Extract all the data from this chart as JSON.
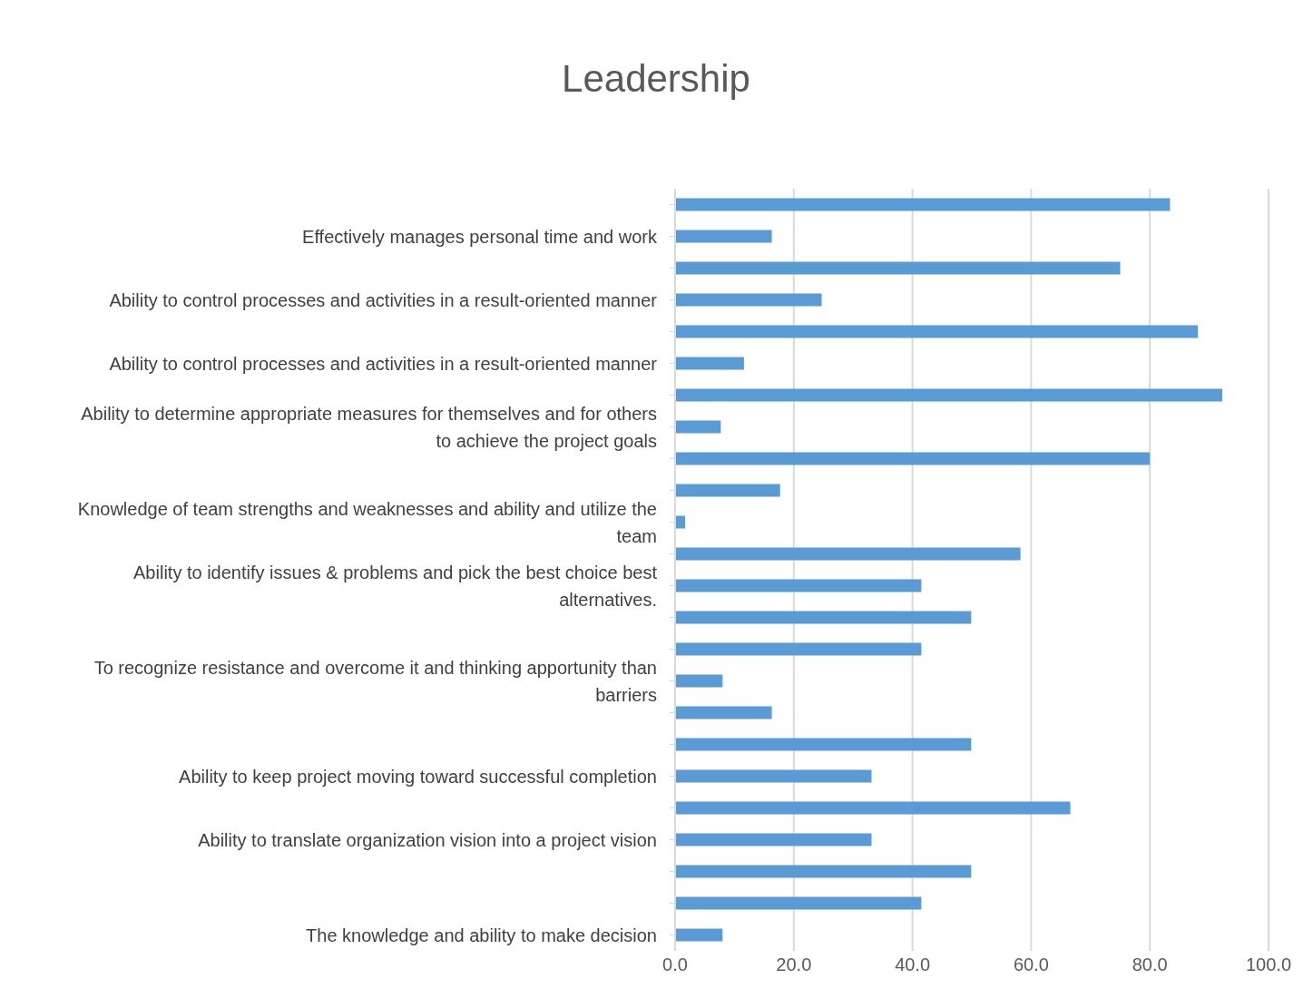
{
  "chart_data": {
    "type": "bar",
    "orientation": "horizontal",
    "title": "Leadership",
    "categories": [
      null,
      "Effectively manages personal time and work",
      null,
      "Ability to control processes and activities in a result-oriented manner",
      null,
      "Ability to control processes and activities in a result-oriented manner",
      null,
      "Ability to determine appropriate measures for themselves and for others to achieve the project goals",
      null,
      null,
      "Knowledge of team strengths and weaknesses and ability and utilize the team",
      null,
      "Ability to identify issues & problems and pick the best choice best alternatives.",
      null,
      null,
      "To recognize resistance and overcome it and thinking apportunity than barriers",
      null,
      null,
      "Ability to keep project moving toward successful completion",
      null,
      "Ability to translate organization vision into a project vision",
      null,
      null,
      "The knowledge and ability to make decision"
    ],
    "values": [
      83.4,
      16.3,
      75.0,
      24.7,
      88.1,
      11.6,
      92.2,
      7.7,
      80.0,
      17.7,
      1.7,
      58.2,
      41.5,
      49.9,
      41.5,
      8.0,
      16.3,
      49.9,
      33.1,
      66.6,
      33.1,
      49.9,
      41.5,
      8.0
    ],
    "color": "#5b9bd5",
    "xlim": [
      0,
      100
    ],
    "xticks": [
      {
        "value": 0,
        "label": "0.0"
      },
      {
        "value": 20,
        "label": "20.0"
      },
      {
        "value": 40,
        "label": "40.0"
      },
      {
        "value": 60,
        "label": "60.0"
      },
      {
        "value": 80,
        "label": "80.0"
      },
      {
        "value": 100,
        "label": "100.0"
      }
    ],
    "grid": "x"
  }
}
